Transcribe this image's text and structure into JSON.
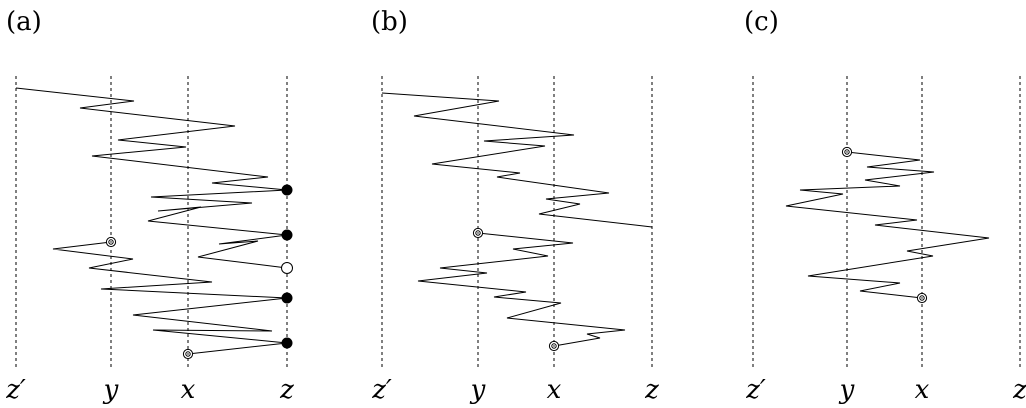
{
  "panels": [
    {
      "label": "(a)",
      "axis_labels": [
        "z′",
        "y",
        "x",
        "z"
      ],
      "markers": [
        "filled",
        "filled",
        "open",
        "filled",
        "filled",
        "target",
        "target"
      ]
    },
    {
      "label": "(b)",
      "axis_labels": [
        "z′",
        "y",
        "x",
        "z"
      ],
      "markers": [
        "target",
        "target"
      ]
    },
    {
      "label": "(c)",
      "axis_labels": [
        "z′",
        "y",
        "x",
        "z"
      ],
      "markers": [
        "target",
        "target"
      ]
    }
  ]
}
